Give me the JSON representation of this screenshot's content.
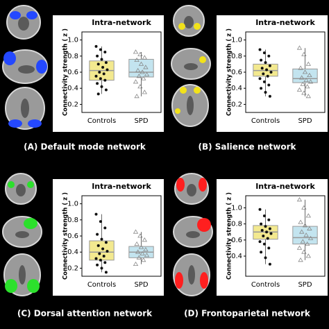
{
  "chart_data": [
    {
      "type": "box",
      "title": "Intra-network",
      "ylabel": "Connectivity strength ( z )",
      "caption": "(A) Default mode network",
      "categories": [
        "Controls",
        "SPD"
      ],
      "ylim": [
        0.1,
        1.1
      ],
      "yticks": [
        0.2,
        0.4,
        0.6,
        0.8,
        {
          "value": 1,
          "label": "1.0"
        }
      ],
      "boxes": [
        {
          "color": "#f3e98f",
          "whisker_low": 0.33,
          "q1": 0.5,
          "median": 0.62,
          "q3": 0.74,
          "whisker_high": 0.92,
          "points": [
            0.92,
            0.88,
            0.85,
            0.8,
            0.76,
            0.72,
            0.7,
            0.66,
            0.63,
            0.6,
            0.58,
            0.55,
            0.52,
            0.5,
            0.46,
            0.42,
            0.38,
            0.33
          ]
        },
        {
          "color": "#c3e4ef",
          "whisker_low": 0.3,
          "q1": 0.54,
          "median": 0.6,
          "q3": 0.76,
          "whisker_high": 0.85,
          "points": [
            0.85,
            0.82,
            0.78,
            0.75,
            0.7,
            0.66,
            0.62,
            0.6,
            0.57,
            0.55,
            0.52,
            0.48,
            0.42,
            0.35,
            0.3
          ]
        }
      ]
    },
    {
      "type": "box",
      "title": "Intra-network",
      "ylabel": "Connectivity strength ( z )",
      "caption": "(B) Salience network",
      "categories": [
        "Controls",
        "SPD"
      ],
      "ylim": [
        0.1,
        1.1
      ],
      "yticks": [
        0.2,
        0.4,
        0.6,
        0.8,
        {
          "value": 1,
          "label": "1.0"
        }
      ],
      "boxes": [
        {
          "color": "#f3e98f",
          "whisker_low": 0.3,
          "q1": 0.55,
          "median": 0.62,
          "q3": 0.7,
          "whisker_high": 0.88,
          "points": [
            0.88,
            0.84,
            0.8,
            0.75,
            0.72,
            0.68,
            0.65,
            0.63,
            0.6,
            0.58,
            0.55,
            0.52,
            0.48,
            0.44,
            0.4,
            0.35,
            0.3
          ]
        },
        {
          "color": "#c3e4ef",
          "whisker_low": 0.3,
          "q1": 0.47,
          "median": 0.52,
          "q3": 0.64,
          "whisker_high": 0.9,
          "points": [
            0.9,
            0.82,
            0.7,
            0.65,
            0.6,
            0.56,
            0.53,
            0.5,
            0.48,
            0.45,
            0.42,
            0.38,
            0.34,
            0.3
          ]
        }
      ]
    },
    {
      "type": "box",
      "title": "Intra-network",
      "ylabel": "Connectivity strength ( z )",
      "caption": "(C) Dorsal attention network",
      "categories": [
        "Controls",
        "SPD"
      ],
      "ylim": [
        0.1,
        1.1
      ],
      "yticks": [
        0.2,
        0.4,
        0.6,
        0.8,
        {
          "value": 1,
          "label": "1.0"
        }
      ],
      "boxes": [
        {
          "color": "#f3e98f",
          "whisker_low": 0.15,
          "q1": 0.3,
          "median": 0.4,
          "q3": 0.54,
          "whisker_high": 0.87,
          "points": [
            0.87,
            0.78,
            0.7,
            0.62,
            0.56,
            0.52,
            0.48,
            0.44,
            0.41,
            0.38,
            0.35,
            0.32,
            0.3,
            0.27,
            0.24,
            0.2,
            0.15
          ]
        },
        {
          "color": "#c3e4ef",
          "whisker_low": 0.25,
          "q1": 0.33,
          "median": 0.4,
          "q3": 0.47,
          "whisker_high": 0.65,
          "points": [
            0.65,
            0.6,
            0.55,
            0.5,
            0.46,
            0.43,
            0.4,
            0.38,
            0.36,
            0.33,
            0.3,
            0.25
          ]
        }
      ]
    },
    {
      "type": "box",
      "title": "Intra-network",
      "ylabel": "Connectivity strength ( z )",
      "caption": "(D) Frontoparietal network",
      "categories": [
        "Controls",
        "SPD"
      ],
      "ylim": [
        0.15,
        1.15
      ],
      "yticks": [
        0.4,
        0.6,
        0.8,
        {
          "value": 1,
          "label": "1.0"
        }
      ],
      "boxes": [
        {
          "color": "#f3e98f",
          "whisker_low": 0.3,
          "q1": 0.61,
          "median": 0.7,
          "q3": 0.78,
          "whisker_high": 0.98,
          "points": [
            0.98,
            0.9,
            0.85,
            0.8,
            0.77,
            0.74,
            0.72,
            0.7,
            0.68,
            0.65,
            0.62,
            0.58,
            0.55,
            0.5,
            0.45,
            0.38,
            0.3
          ]
        },
        {
          "color": "#c3e4ef",
          "whisker_low": 0.35,
          "q1": 0.55,
          "median": 0.63,
          "q3": 0.77,
          "whisker_high": 1.1,
          "points": [
            1.1,
            1.0,
            0.9,
            0.82,
            0.78,
            0.74,
            0.7,
            0.66,
            0.62,
            0.58,
            0.55,
            0.5,
            0.45,
            0.4,
            0.35
          ]
        }
      ]
    }
  ]
}
